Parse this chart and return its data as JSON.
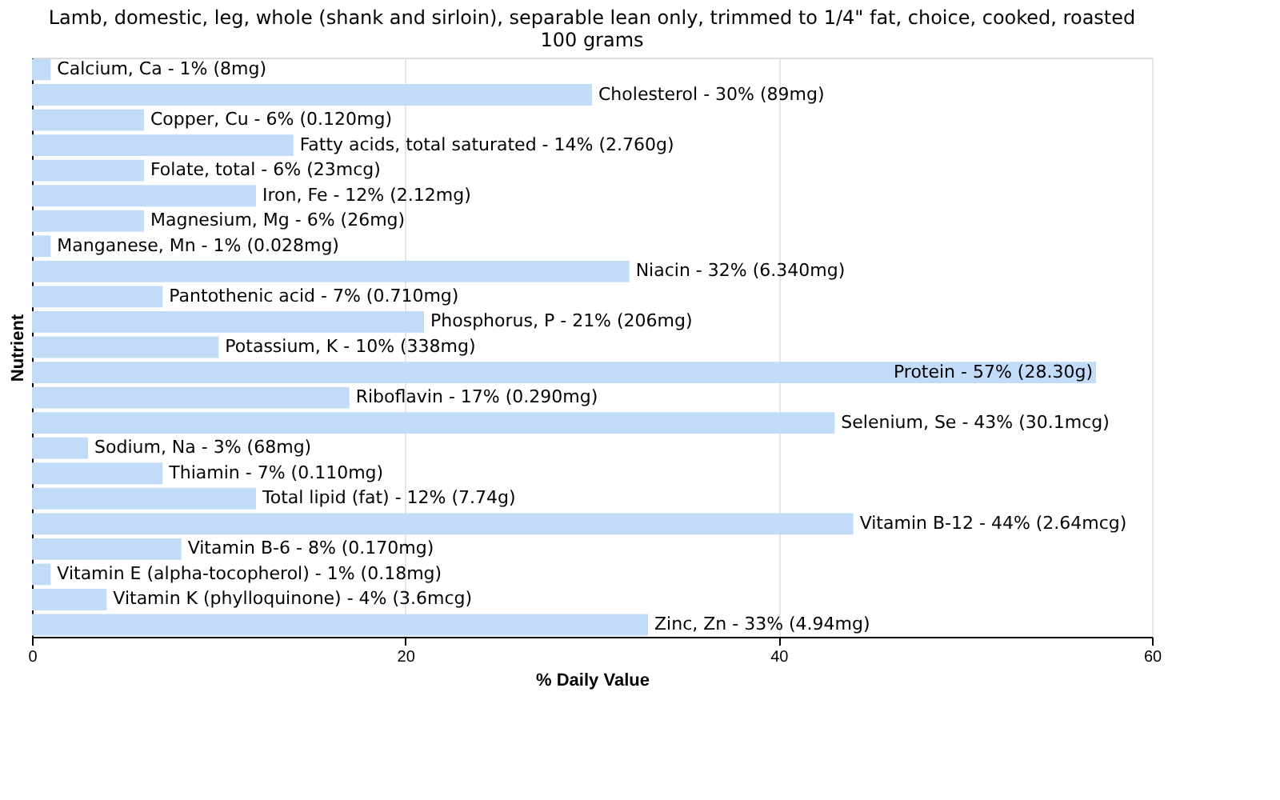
{
  "chart_data": {
    "type": "bar",
    "orientation": "horizontal",
    "title": "Lamb, domestic, leg, whole (shank and sirloin), separable lean only, trimmed to 1/4\" fat, choice, cooked, roasted 100 grams",
    "xlabel": "% Daily Value",
    "ylabel": "Nutrient",
    "categories": [
      "Calcium, Ca -",
      "Cholesterol -",
      "Copper, Cu -",
      "Fatty acids, total saturated -",
      "Folate, total -",
      "Iron, Fe -",
      "Magnesium, Mg -",
      "Manganese, Mn -",
      "Niacin -",
      "Pantothenic acid -",
      "Phosphorus, P -",
      "Potassium, K -",
      "Protein -",
      "Riboflavin -",
      "Selenium, Se -",
      "Sodium, Na -",
      "Thiamin -",
      "Total lipid (fat) -",
      "Vitamin B-12 -",
      "Vitamin B-6 -",
      "Vitamin E (alpha-tocopherol) -",
      "Vitamin K (phylloquinone) -",
      "Zinc, Zn -"
    ],
    "values": [
      1,
      30,
      6,
      14,
      6,
      12,
      6,
      1,
      32,
      7,
      21,
      10,
      57,
      17,
      43,
      3,
      7,
      12,
      44,
      8,
      1,
      4,
      33
    ],
    "value_labels": [
      "1% (8mg)",
      "30% (89mg)",
      "6% (0.120mg)",
      "14% (2.760g)",
      "6% (23mcg)",
      "12% (2.12mg)",
      "6% (26mg)",
      "1% (0.028mg)",
      "32% (6.340mg)",
      "7% (0.710mg)",
      "21% (206mg)",
      "10% (338mg)",
      "57% (28.30g)",
      "17% (0.290mg)",
      "43% (30.1mcg)",
      "3% (68mg)",
      "7% (0.110mg)",
      "12% (7.74g)",
      "44% (2.64mcg)",
      "8% (0.170mg)",
      "1% (0.18mg)",
      "4% (3.6mcg)",
      "33% (4.94mg)"
    ],
    "color": "#c2dbf8",
    "xlim": [
      0,
      60
    ],
    "xticks": [
      0,
      20,
      40,
      60
    ],
    "grid": "x",
    "tick_labels": "x"
  }
}
